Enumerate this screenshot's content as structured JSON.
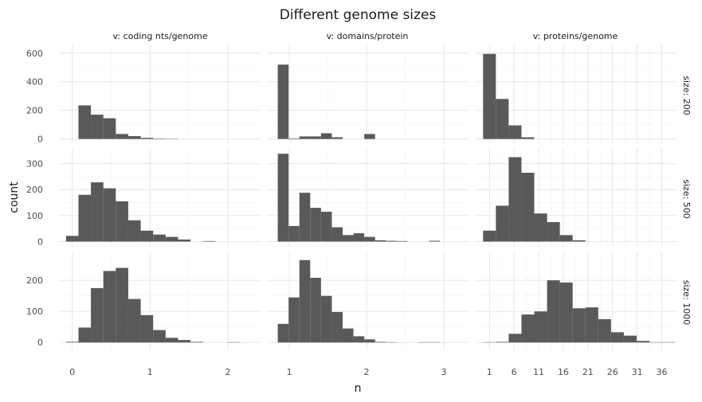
{
  "chart_data": {
    "type": "histogram",
    "title": "Different genome sizes",
    "xlabel": "n",
    "ylabel": "count",
    "col_strips": [
      "v: coding nts/genome",
      "v: domains/protein",
      "v: proteins/genome"
    ],
    "row_strips": [
      "size: 200",
      "size: 500",
      "size: 1000"
    ],
    "col_xlim": [
      [
        -0.16,
        2.42
      ],
      [
        0.72,
        3.32
      ],
      [
        -1.8,
        39.0
      ]
    ],
    "col_xticks": [
      [
        0,
        1,
        2
      ],
      [
        1,
        2,
        3
      ],
      [
        1,
        6,
        11,
        16,
        21,
        26,
        31,
        36
      ]
    ],
    "col_xtick_labels": [
      [
        "0",
        "1",
        "2"
      ],
      [
        "1",
        "2",
        "3"
      ],
      [
        "1",
        "6",
        "11",
        "16",
        "21",
        "26",
        "31",
        "36"
      ]
    ],
    "col_bin_start": [
      -0.08,
      0.85,
      -0.3
    ],
    "col_bin_width": [
      0.16,
      0.14,
      2.6
    ],
    "row_ylim": [
      [
        -30,
        660
      ],
      [
        -20,
        360
      ],
      [
        -25,
        290
      ]
    ],
    "row_yticks": [
      [
        0,
        200,
        400,
        600
      ],
      [
        0,
        100,
        200,
        300
      ],
      [
        0,
        100,
        200
      ]
    ],
    "row_ytick_labels": [
      [
        "0",
        "200",
        "400",
        "600"
      ],
      [
        "0",
        "100",
        "200",
        "300"
      ],
      [
        "0",
        "100",
        "200"
      ]
    ],
    "panels": [
      [
        {
          "counts": [
            0,
            235,
            170,
            145,
            35,
            20,
            8,
            3,
            2,
            0,
            0,
            0,
            0,
            0,
            0
          ]
        },
        {
          "counts": [
            520,
            4,
            18,
            18,
            40,
            12,
            0,
            0,
            35,
            0,
            0,
            0,
            0,
            0,
            0,
            0,
            0
          ]
        },
        {
          "counts": [
            595,
            280,
            95,
            12,
            0,
            0,
            0,
            0,
            0,
            0,
            0,
            0,
            0,
            0,
            0
          ]
        }
      ],
      [
        {
          "counts": [
            22,
            180,
            228,
            205,
            155,
            82,
            42,
            27,
            18,
            8,
            0,
            2,
            0,
            0,
            0
          ]
        },
        {
          "counts": [
            338,
            60,
            188,
            130,
            115,
            55,
            25,
            32,
            18,
            5,
            3,
            2,
            0,
            0,
            3,
            0,
            0
          ]
        },
        {
          "counts": [
            42,
            138,
            325,
            265,
            108,
            75,
            25,
            5,
            0,
            0,
            0,
            0,
            0,
            0,
            0
          ]
        }
      ],
      [
        {
          "counts": [
            2,
            48,
            175,
            230,
            240,
            140,
            88,
            40,
            15,
            8,
            2,
            0,
            0,
            1,
            0
          ]
        },
        {
          "counts": [
            60,
            145,
            265,
            208,
            150,
            98,
            45,
            20,
            10,
            2,
            1,
            0,
            0,
            1,
            1,
            0,
            0
          ]
        },
        {
          "counts": [
            1,
            2,
            28,
            90,
            100,
            200,
            193,
            110,
            113,
            75,
            33,
            22,
            5,
            1,
            1
          ]
        }
      ]
    ]
  }
}
